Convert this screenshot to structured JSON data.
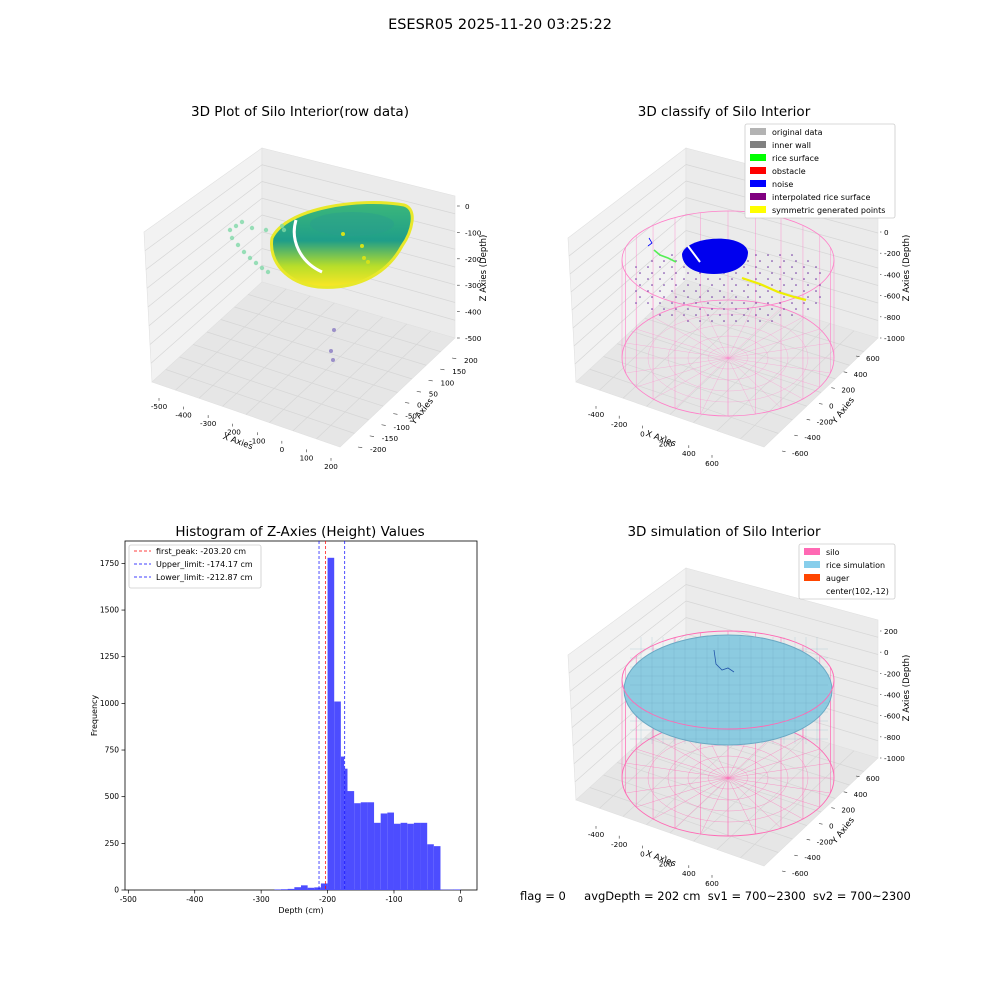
{
  "suptitle": "ESESR05 2025-11-20 03:25:22",
  "footer": {
    "flag": "flag = 0",
    "avg_depth": "avgDepth = 202 cm",
    "sv1": "sv1 = 700~2300",
    "sv2": "sv2 = 700~2300"
  },
  "chart_data": [
    {
      "type": "scatter",
      "title": "3D Plot of Silo Interior(row data)",
      "xlabel": "X Axies",
      "ylabel": "Y Axies",
      "zlabel": "Z Axies (Depth)",
      "x_ticks": [
        -500,
        -400,
        -300,
        -200,
        -100,
        0,
        100,
        200
      ],
      "y_ticks": [
        -200,
        -150,
        -100,
        -50,
        0,
        50,
        100,
        150,
        200
      ],
      "z_ticks": [
        0,
        -100,
        -200,
        -300,
        -400,
        -500
      ],
      "colormap": "viridis"
    },
    {
      "type": "scatter",
      "title": "3D classify of Silo Interior",
      "xlabel": "X Axies",
      "ylabel": "Y Axies",
      "zlabel": "Z Axies (Depth)",
      "x_ticks": [
        -400,
        -200,
        0,
        200,
        400,
        600
      ],
      "y_ticks": [
        -600,
        -400,
        -200,
        0,
        200,
        400,
        600
      ],
      "z_ticks": [
        0,
        -200,
        -400,
        -600,
        -800,
        -1000
      ],
      "legend_position": "top-right",
      "legend": [
        {
          "label": "original data",
          "color": "#b3b3b3"
        },
        {
          "label": "inner wall",
          "color": "#808080"
        },
        {
          "label": "rice surface",
          "color": "#00ff00"
        },
        {
          "label": "obstacle",
          "color": "#ff0000"
        },
        {
          "label": "noise",
          "color": "#0000ff"
        },
        {
          "label": "interpolated rice surface",
          "color": "#800080"
        },
        {
          "label": "symmetric generated points",
          "color": "#ffff00"
        }
      ]
    },
    {
      "type": "bar",
      "title": "Histogram of Z-Axies (Height) Values",
      "xlabel": "Depth (cm)",
      "ylabel": "Frequency",
      "xlim": [
        -505,
        25
      ],
      "ylim": [
        0,
        1870
      ],
      "x_ticks": [
        -500,
        -400,
        -300,
        -200,
        -100,
        0
      ],
      "y_ticks": [
        0,
        250,
        500,
        750,
        1000,
        1250,
        1500,
        1750
      ],
      "bar_color": "#4d4dff",
      "bins": [
        {
          "x0": -280,
          "x1": -270,
          "count": 3
        },
        {
          "x0": -270,
          "x1": -260,
          "count": 4
        },
        {
          "x0": -260,
          "x1": -250,
          "count": 6
        },
        {
          "x0": -250,
          "x1": -240,
          "count": 15
        },
        {
          "x0": -240,
          "x1": -230,
          "count": 25
        },
        {
          "x0": -230,
          "x1": -220,
          "count": 12
        },
        {
          "x0": -220,
          "x1": -210,
          "count": 14
        },
        {
          "x0": -210,
          "x1": -200,
          "count": 35
        },
        {
          "x0": -200,
          "x1": -190,
          "count": 1780
        },
        {
          "x0": -190,
          "x1": -180,
          "count": 1010
        },
        {
          "x0": -180,
          "x1": -175,
          "count": 715
        },
        {
          "x0": -175,
          "x1": -170,
          "count": 650
        },
        {
          "x0": -170,
          "x1": -160,
          "count": 530
        },
        {
          "x0": -160,
          "x1": -150,
          "count": 465
        },
        {
          "x0": -150,
          "x1": -140,
          "count": 470
        },
        {
          "x0": -140,
          "x1": -130,
          "count": 470
        },
        {
          "x0": -130,
          "x1": -120,
          "count": 360
        },
        {
          "x0": -120,
          "x1": -110,
          "count": 410
        },
        {
          "x0": -110,
          "x1": -100,
          "count": 415
        },
        {
          "x0": -100,
          "x1": -90,
          "count": 355
        },
        {
          "x0": -90,
          "x1": -80,
          "count": 360
        },
        {
          "x0": -80,
          "x1": -70,
          "count": 355
        },
        {
          "x0": -70,
          "x1": -60,
          "count": 360
        },
        {
          "x0": -60,
          "x1": -50,
          "count": 360
        },
        {
          "x0": -50,
          "x1": -40,
          "count": 245
        },
        {
          "x0": -40,
          "x1": -30,
          "count": 235
        },
        {
          "x0": -30,
          "x1": -20,
          "count": 2
        },
        {
          "x0": -20,
          "x1": -10,
          "count": 2
        },
        {
          "x0": -10,
          "x1": 0,
          "count": 3
        }
      ],
      "vlines": [
        {
          "label": "first_peak: -203.20 cm",
          "x": -203.2,
          "color": "#ff0000"
        },
        {
          "label": "Upper_limit: -174.17 cm",
          "x": -174.17,
          "color": "#0000ff"
        },
        {
          "label": "Lower_limit: -212.87 cm",
          "x": -212.87,
          "color": "#0000ff"
        }
      ],
      "legend_position": "top-left"
    },
    {
      "type": "scatter",
      "title": "3D simulation of Silo Interior",
      "xlabel": "X Axies",
      "ylabel": "Y Axies",
      "zlabel": "Z Axies (Depth)",
      "x_ticks": [
        -400,
        -200,
        0,
        200,
        400,
        600
      ],
      "y_ticks": [
        -600,
        -400,
        -200,
        0,
        200,
        400,
        600
      ],
      "z_ticks": [
        200,
        0,
        -200,
        -400,
        -600,
        -800,
        -1000
      ],
      "legend_position": "top-right",
      "legend": [
        {
          "label": "silo",
          "color": "#ff69b4"
        },
        {
          "label": "rice simulation",
          "color": "#87ceeb"
        },
        {
          "label": "auger",
          "color": "#ff4500"
        },
        {
          "label": "center(102,-12)",
          "color": ""
        }
      ]
    }
  ]
}
